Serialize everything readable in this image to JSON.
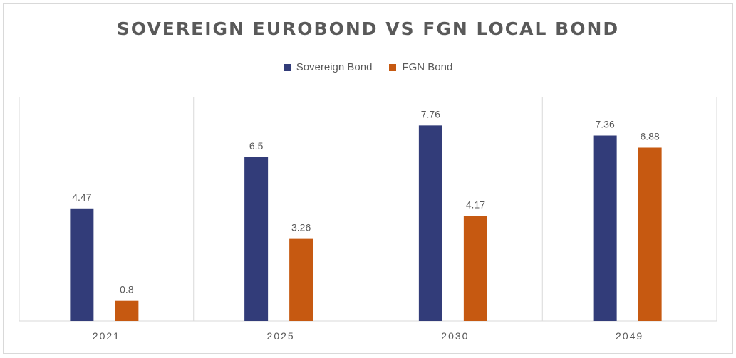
{
  "chart_data": {
    "type": "bar",
    "title": "SOVEREIGN EUROBOND VS FGN LOCAL BOND",
    "categories": [
      "2021",
      "2025",
      "2030",
      "2049"
    ],
    "series": [
      {
        "name": "Sovereign Bond",
        "color": "#323c79",
        "values": [
          4.47,
          6.5,
          7.76,
          7.36
        ]
      },
      {
        "name": "FGN Bond",
        "color": "#c65911",
        "values": [
          0.8,
          3.26,
          4.17,
          6.88
        ]
      }
    ],
    "ylim": [
      0,
      8.9
    ],
    "legend_position": "top",
    "grid": false
  }
}
